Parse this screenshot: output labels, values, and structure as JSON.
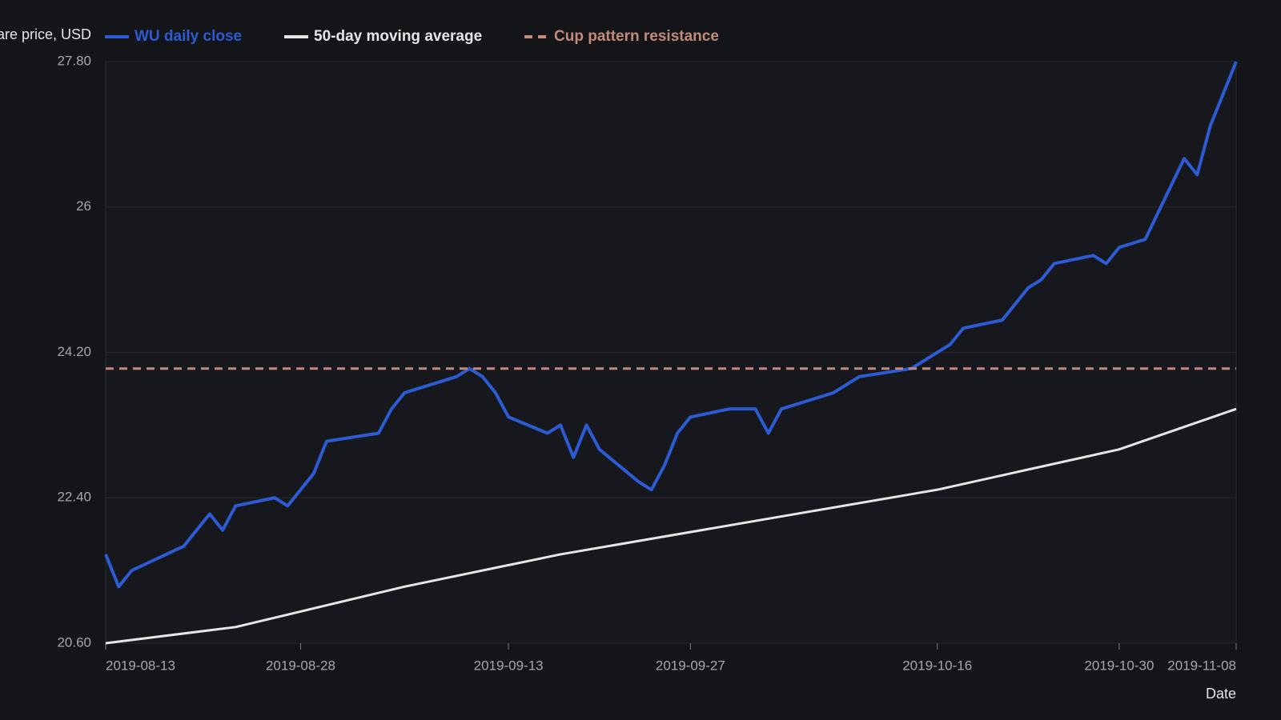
{
  "chart_data": {
    "type": "line",
    "y_label": "Share price, USD",
    "x_label": "Date",
    "xlim": [
      "2019-08-13",
      "2019-11-08"
    ],
    "xticks": [
      "2019-08-13",
      "2019-08-28",
      "2019-09-13",
      "2019-09-27",
      "2019-10-16",
      "2019-10-30",
      "2019-11-08"
    ],
    "ylim": [
      20.6,
      27.8
    ],
    "yticks": [
      {
        "value": 20.6,
        "label": "20.60"
      },
      {
        "value": 22.4,
        "label": "22.40"
      },
      {
        "value": 24.2,
        "label": "24.20"
      },
      26,
      {
        "value": 27.8,
        "label": "27.80"
      }
    ],
    "grid": true,
    "series": [
      {
        "name": "WU daily close",
        "color": "#2c5bd4",
        "style": "solid",
        "x": [
          "2019-08-13",
          "2019-08-14",
          "2019-08-15",
          "2019-08-19",
          "2019-08-21",
          "2019-08-22",
          "2019-08-23",
          "2019-08-26",
          "2019-08-27",
          "2019-08-29",
          "2019-08-30",
          "2019-09-03",
          "2019-09-04",
          "2019-09-05",
          "2019-09-09",
          "2019-09-10",
          "2019-09-11",
          "2019-09-12",
          "2019-09-13",
          "2019-09-16",
          "2019-09-17",
          "2019-09-18",
          "2019-09-19",
          "2019-09-20",
          "2019-09-23",
          "2019-09-24",
          "2019-09-25",
          "2019-09-26",
          "2019-09-27",
          "2019-09-30",
          "2019-10-02",
          "2019-10-03",
          "2019-10-04",
          "2019-10-08",
          "2019-10-10",
          "2019-10-14",
          "2019-10-17",
          "2019-10-18",
          "2019-10-21",
          "2019-10-23",
          "2019-10-24",
          "2019-10-25",
          "2019-10-28",
          "2019-10-29",
          "2019-10-30",
          "2019-11-01",
          "2019-11-04",
          "2019-11-05",
          "2019-11-06",
          "2019-11-08"
        ],
        "values": [
          21.7,
          21.3,
          21.5,
          21.8,
          22.2,
          22.0,
          22.3,
          22.4,
          22.3,
          22.7,
          23.1,
          23.2,
          23.5,
          23.7,
          23.9,
          24.0,
          23.9,
          23.7,
          23.4,
          23.2,
          23.3,
          22.9,
          23.3,
          23.0,
          22.6,
          22.5,
          22.8,
          23.2,
          23.4,
          23.5,
          23.5,
          23.2,
          23.5,
          23.7,
          23.9,
          24.0,
          24.3,
          24.5,
          24.6,
          25.0,
          25.1,
          25.3,
          25.4,
          25.3,
          25.5,
          25.6,
          26.6,
          26.4,
          27.0,
          27.8
        ]
      },
      {
        "name": "50-day moving average",
        "color": "#e6e6e6",
        "style": "solid",
        "x": [
          "2019-08-13",
          "2019-08-23",
          "2019-09-05",
          "2019-09-17",
          "2019-10-16",
          "2019-10-30",
          "2019-11-08"
        ],
        "values": [
          20.6,
          20.8,
          21.3,
          21.7,
          22.5,
          23.0,
          23.5
        ]
      },
      {
        "name": "Cup pattern resistance",
        "color": "#c38a7b",
        "style": "dashed",
        "value": 24.0
      }
    ]
  }
}
